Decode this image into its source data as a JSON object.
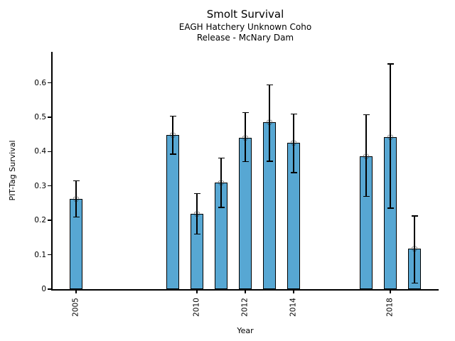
{
  "chart_data": {
    "type": "bar",
    "title": "Smolt Survival",
    "subtitle_lines": [
      "EAGH Hatchery Unknown Coho",
      "Release - McNary Dam"
    ],
    "xlabel": "Year",
    "ylabel": "PIT-Tag Survival",
    "xlim": [
      2004,
      2020
    ],
    "ylim": [
      0,
      0.69
    ],
    "grid": false,
    "legend": false,
    "bar_width_years": 0.54,
    "colors": {
      "bar_fill": "#57A7D3",
      "bar_edge": "#000000",
      "error_bar": "#000000",
      "marker_edge": "#1a1a1a",
      "background": "#ffffff"
    },
    "xticks": [
      {
        "pos": 2005,
        "label": "2005"
      },
      {
        "pos": 2010,
        "label": "2010"
      },
      {
        "pos": 2012,
        "label": "2012"
      },
      {
        "pos": 2014,
        "label": "2014"
      },
      {
        "pos": 2018,
        "label": "2018"
      }
    ],
    "yticks": [
      {
        "pos": 0.0,
        "label": "0"
      },
      {
        "pos": 0.1,
        "label": "0.1"
      },
      {
        "pos": 0.2,
        "label": "0.2"
      },
      {
        "pos": 0.3,
        "label": "0.3"
      },
      {
        "pos": 0.4,
        "label": "0.4"
      },
      {
        "pos": 0.5,
        "label": "0.5"
      },
      {
        "pos": 0.6,
        "label": "0.6"
      }
    ],
    "series": [
      {
        "name": "PIT-Tag Survival",
        "points": [
          {
            "year": 2005,
            "value": 0.263,
            "ci_low": 0.21,
            "ci_high": 0.315
          },
          {
            "year": 2009,
            "value": 0.449,
            "ci_low": 0.392,
            "ci_high": 0.503
          },
          {
            "year": 2010,
            "value": 0.22,
            "ci_low": 0.16,
            "ci_high": 0.278
          },
          {
            "year": 2011,
            "value": 0.309,
            "ci_low": 0.238,
            "ci_high": 0.381
          },
          {
            "year": 2012,
            "value": 0.44,
            "ci_low": 0.371,
            "ci_high": 0.513
          },
          {
            "year": 2013,
            "value": 0.485,
            "ci_low": 0.372,
            "ci_high": 0.594
          },
          {
            "year": 2014,
            "value": 0.425,
            "ci_low": 0.339,
            "ci_high": 0.509
          },
          {
            "year": 2017,
            "value": 0.387,
            "ci_low": 0.27,
            "ci_high": 0.507
          },
          {
            "year": 2018,
            "value": 0.443,
            "ci_low": 0.235,
            "ci_high": 0.655
          },
          {
            "year": 2019,
            "value": 0.117,
            "ci_low": 0.018,
            "ci_high": 0.213
          }
        ]
      }
    ]
  }
}
